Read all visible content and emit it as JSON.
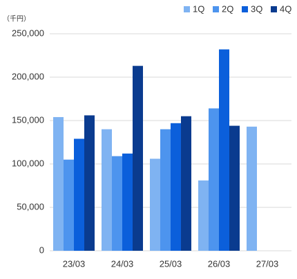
{
  "chart_data": {
    "type": "bar",
    "unit_label": "（千円）",
    "categories": [
      "23/03",
      "24/03",
      "25/03",
      "26/03",
      "27/03"
    ],
    "series": [
      {
        "name": "1Q",
        "color": "#7fb3f2",
        "values": [
          154000,
          140000,
          106000,
          81000,
          143000
        ]
      },
      {
        "name": "2Q",
        "color": "#4d94ee",
        "values": [
          105000,
          109000,
          140000,
          164000,
          null
        ]
      },
      {
        "name": "3Q",
        "color": "#0b5fdb",
        "values": [
          129000,
          112000,
          147000,
          232000,
          null
        ]
      },
      {
        "name": "4Q",
        "color": "#0a3b8f",
        "values": [
          156000,
          213000,
          155000,
          144000,
          null
        ]
      }
    ],
    "ylim": [
      0,
      250000
    ],
    "yticks": [
      0,
      {
        "value": 50000,
        "label": "50,000"
      },
      {
        "value": 100000,
        "label": "100,000"
      },
      {
        "value": 150000,
        "label": "150,000"
      },
      {
        "value": 200000,
        "label": "200,000"
      },
      {
        "value": 250000,
        "label": "250,000"
      }
    ],
    "grid": true
  }
}
